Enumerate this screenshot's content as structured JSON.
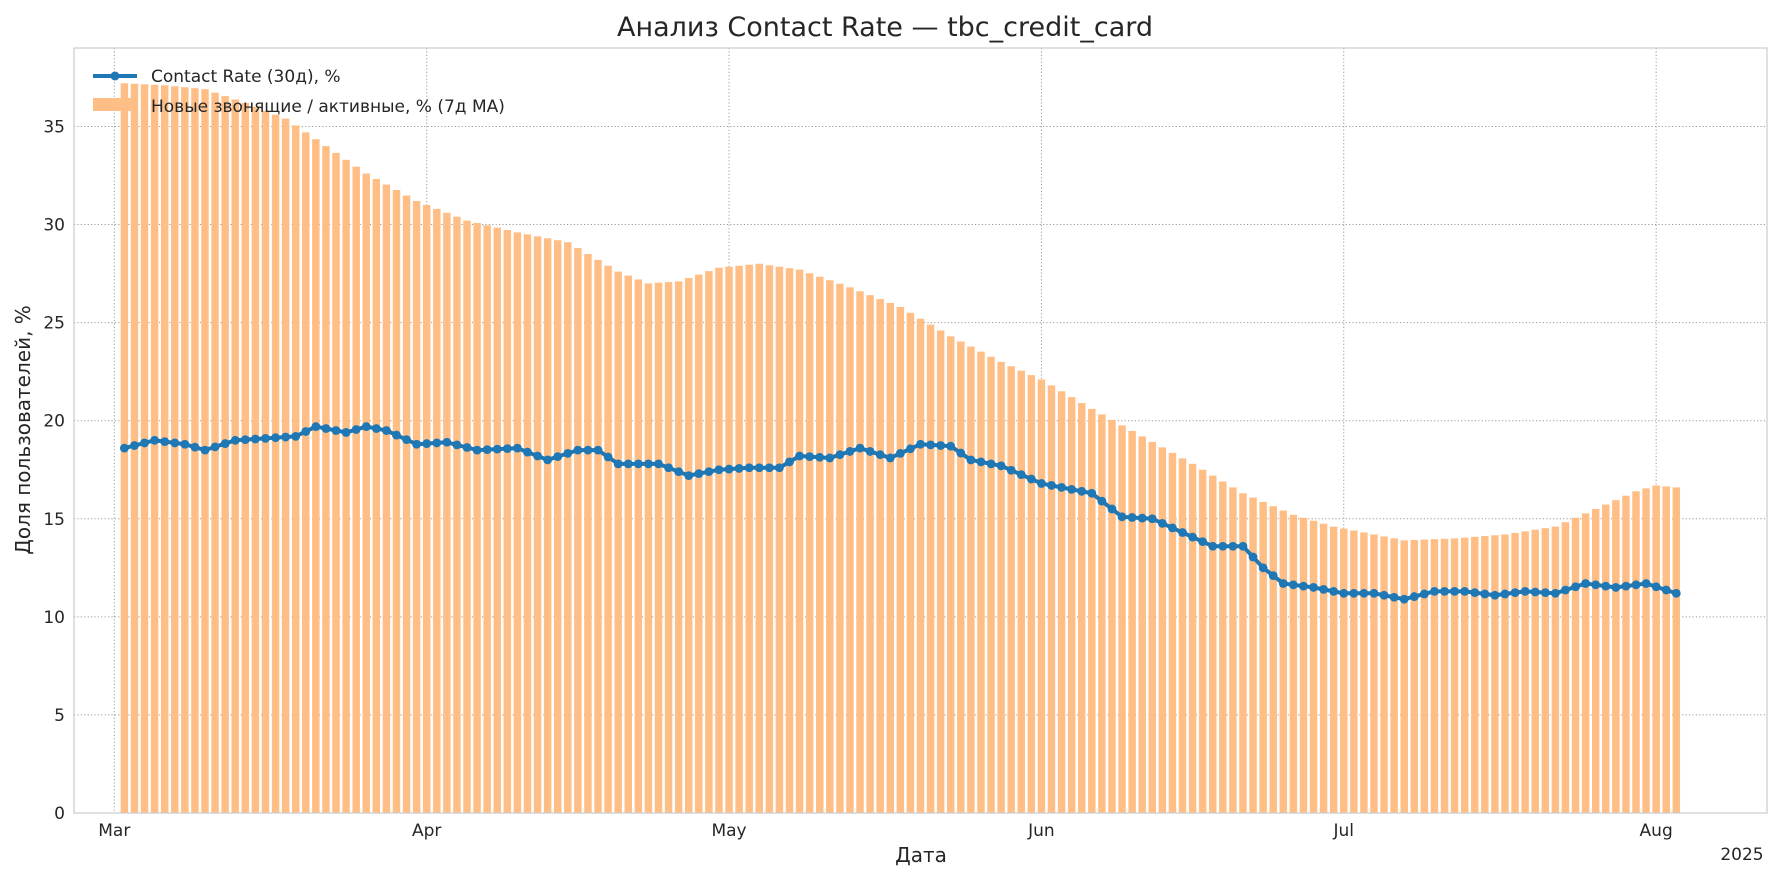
{
  "chart_data": {
    "type": "bar+line",
    "title": "Анализ Contact Rate — tbc_credit_card",
    "xlabel": "Дата",
    "ylabel": "Доля пользователей, %",
    "year_label": "2025",
    "ylim": [
      0,
      39
    ],
    "xlim": [
      "2025-02-25",
      "2025-08-12"
    ],
    "grid": true,
    "legend_position": "top-left",
    "y_ticks": [
      0,
      5,
      10,
      15,
      20,
      25,
      30,
      35
    ],
    "x_ticks": [
      {
        "date": "2025-03-01",
        "label": "Mar"
      },
      {
        "date": "2025-04-01",
        "label": "Apr"
      },
      {
        "date": "2025-05-01",
        "label": "May"
      },
      {
        "date": "2025-06-01",
        "label": "Jun"
      },
      {
        "date": "2025-07-01",
        "label": "Jul"
      },
      {
        "date": "2025-08-01",
        "label": "Aug"
      }
    ],
    "colors": {
      "line": "#1f77b4",
      "bars": "#ffbe86"
    },
    "series": [
      {
        "name": "Новые звонящие / активные, % (7д MA)",
        "kind": "bar",
        "start_date": "2025-03-02",
        "end_date": "2025-08-03",
        "anchors": [
          [
            "2025-03-02",
            37.2
          ],
          [
            "2025-03-06",
            37.1
          ],
          [
            "2025-03-10",
            36.9
          ],
          [
            "2025-03-14",
            36.2
          ],
          [
            "2025-03-18",
            35.4
          ],
          [
            "2025-03-22",
            34.0
          ],
          [
            "2025-03-26",
            32.6
          ],
          [
            "2025-03-31",
            31.2
          ],
          [
            "2025-04-05",
            30.2
          ],
          [
            "2025-04-10",
            29.6
          ],
          [
            "2025-04-15",
            29.1
          ],
          [
            "2025-04-20",
            27.6
          ],
          [
            "2025-04-23",
            27.0
          ],
          [
            "2025-04-26",
            27.1
          ],
          [
            "2025-04-30",
            27.8
          ],
          [
            "2025-05-04",
            28.0
          ],
          [
            "2025-05-08",
            27.7
          ],
          [
            "2025-05-13",
            26.8
          ],
          [
            "2025-05-18",
            25.8
          ],
          [
            "2025-05-23",
            24.3
          ],
          [
            "2025-05-28",
            23.0
          ],
          [
            "2025-06-01",
            22.1
          ],
          [
            "2025-06-06",
            20.6
          ],
          [
            "2025-06-11",
            19.2
          ],
          [
            "2025-06-16",
            17.8
          ],
          [
            "2025-06-21",
            16.3
          ],
          [
            "2025-06-26",
            15.2
          ],
          [
            "2025-06-30",
            14.6
          ],
          [
            "2025-07-03",
            14.3
          ],
          [
            "2025-07-07",
            13.9
          ],
          [
            "2025-07-12",
            14.0
          ],
          [
            "2025-07-17",
            14.2
          ],
          [
            "2025-07-22",
            14.6
          ],
          [
            "2025-07-26",
            15.5
          ],
          [
            "2025-07-30",
            16.4
          ],
          [
            "2025-08-01",
            16.7
          ],
          [
            "2025-08-03",
            16.6
          ]
        ]
      },
      {
        "name": "Contact Rate (30д), %",
        "kind": "line",
        "start_date": "2025-03-02",
        "end_date": "2025-08-03",
        "anchors": [
          [
            "2025-03-02",
            18.6
          ],
          [
            "2025-03-05",
            19.0
          ],
          [
            "2025-03-08",
            18.8
          ],
          [
            "2025-03-10",
            18.5
          ],
          [
            "2025-03-13",
            19.0
          ],
          [
            "2025-03-16",
            19.1
          ],
          [
            "2025-03-19",
            19.2
          ],
          [
            "2025-03-21",
            19.7
          ],
          [
            "2025-03-24",
            19.4
          ],
          [
            "2025-03-26",
            19.7
          ],
          [
            "2025-03-28",
            19.5
          ],
          [
            "2025-03-31",
            18.8
          ],
          [
            "2025-04-03",
            18.9
          ],
          [
            "2025-04-06",
            18.5
          ],
          [
            "2025-04-10",
            18.6
          ],
          [
            "2025-04-13",
            18.0
          ],
          [
            "2025-04-16",
            18.5
          ],
          [
            "2025-04-18",
            18.5
          ],
          [
            "2025-04-20",
            17.8
          ],
          [
            "2025-04-24",
            17.8
          ],
          [
            "2025-04-27",
            17.2
          ],
          [
            "2025-04-30",
            17.5
          ],
          [
            "2025-05-03",
            17.6
          ],
          [
            "2025-05-06",
            17.6
          ],
          [
            "2025-05-08",
            18.2
          ],
          [
            "2025-05-11",
            18.1
          ],
          [
            "2025-05-14",
            18.6
          ],
          [
            "2025-05-17",
            18.1
          ],
          [
            "2025-05-20",
            18.8
          ],
          [
            "2025-05-23",
            18.7
          ],
          [
            "2025-05-25",
            18.0
          ],
          [
            "2025-05-28",
            17.7
          ],
          [
            "2025-06-01",
            16.8
          ],
          [
            "2025-06-04",
            16.5
          ],
          [
            "2025-06-06",
            16.3
          ],
          [
            "2025-06-09",
            15.1
          ],
          [
            "2025-06-12",
            15.0
          ],
          [
            "2025-06-15",
            14.3
          ],
          [
            "2025-06-18",
            13.6
          ],
          [
            "2025-06-21",
            13.6
          ],
          [
            "2025-06-23",
            12.5
          ],
          [
            "2025-06-25",
            11.7
          ],
          [
            "2025-06-28",
            11.5
          ],
          [
            "2025-07-01",
            11.2
          ],
          [
            "2025-07-04",
            11.2
          ],
          [
            "2025-07-07",
            10.9
          ],
          [
            "2025-07-10",
            11.3
          ],
          [
            "2025-07-13",
            11.3
          ],
          [
            "2025-07-16",
            11.1
          ],
          [
            "2025-07-19",
            11.3
          ],
          [
            "2025-07-22",
            11.2
          ],
          [
            "2025-07-25",
            11.7
          ],
          [
            "2025-07-28",
            11.5
          ],
          [
            "2025-07-31",
            11.7
          ],
          [
            "2025-08-03",
            11.2
          ]
        ]
      }
    ]
  }
}
